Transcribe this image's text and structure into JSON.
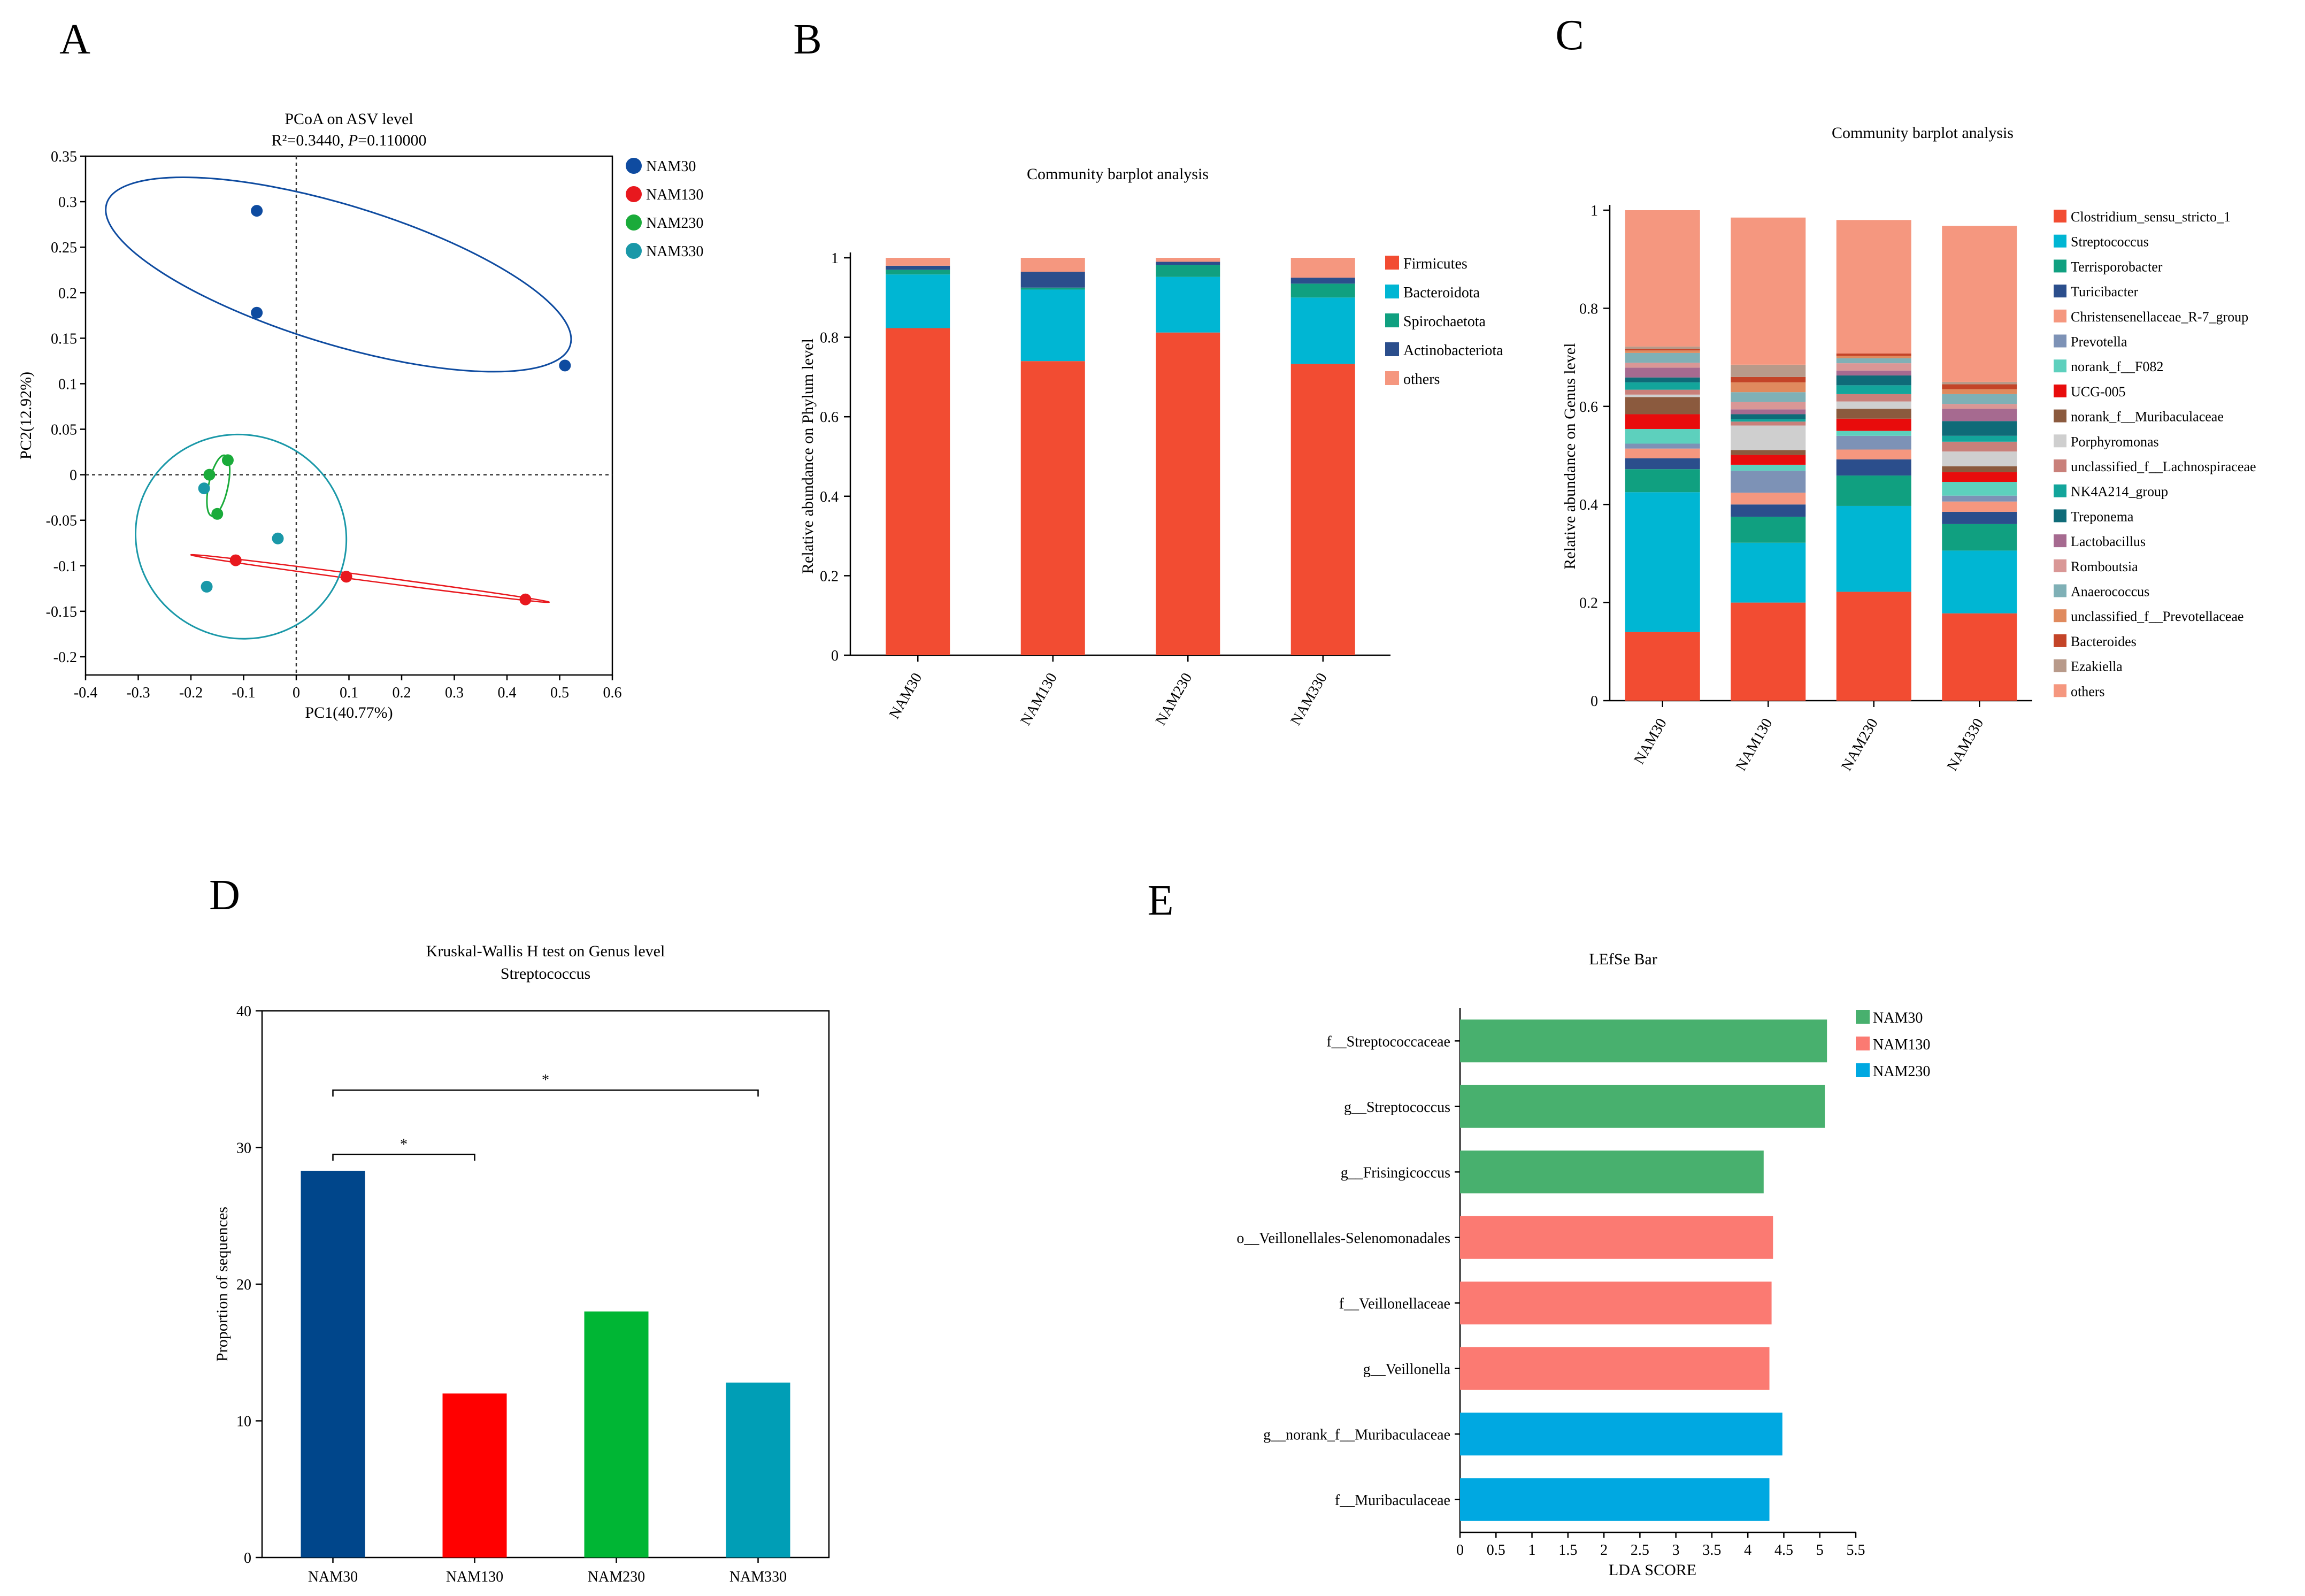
{
  "panel_letters": [
    "A",
    "B",
    "C",
    "D",
    "E"
  ],
  "chart_data": [
    {
      "id": "A",
      "type": "scatter",
      "title": "PCoA on ASV level",
      "subtitle_prefix": "R²=0.3440, ",
      "subtitle_p_label": "P",
      "subtitle_p_value": "=0.110000",
      "xlabel": "PC1(40.77%)",
      "ylabel": "PC2(12.92%)",
      "xlim": [
        -0.4,
        0.6
      ],
      "ylim": [
        -0.22,
        0.35
      ],
      "xticks": [
        -0.4,
        -0.3,
        -0.2,
        -0.1,
        0,
        0.1,
        0.2,
        0.3,
        0.4,
        0.5,
        0.6
      ],
      "xtick_labels": [
        "-0.4",
        "-0.3",
        "-0.2",
        "-0.1",
        "0",
        "0.1",
        "0.2",
        "0.3",
        "0.4",
        "0.5",
        "0.6"
      ],
      "yticks": [
        -0.2,
        -0.15,
        -0.1,
        -0.05,
        0,
        0.05,
        0.1,
        0.15,
        0.2,
        0.25,
        0.3,
        0.35
      ],
      "ytick_labels": [
        "-0.2",
        "-0.15",
        "-0.1",
        "-0.05",
        "0",
        "0.05",
        "0.1",
        "0.15",
        "0.2",
        "0.25",
        "0.3",
        "0.35"
      ],
      "series": [
        {
          "name": "NAM30",
          "color": "#0e4ba0",
          "points": [
            [
              -0.075,
              0.29
            ],
            [
              -0.075,
              0.178
            ],
            [
              0.51,
              0.12
            ]
          ]
        },
        {
          "name": "NAM130",
          "color": "#e8181e",
          "points": [
            [
              -0.115,
              -0.094
            ],
            [
              0.095,
              -0.112
            ],
            [
              0.435,
              -0.137
            ]
          ]
        },
        {
          "name": "NAM230",
          "color": "#1aab3a",
          "points": [
            [
              -0.165,
              0.0
            ],
            [
              -0.13,
              0.016
            ],
            [
              -0.15,
              -0.043
            ]
          ]
        },
        {
          "name": "NAM330",
          "color": "#1a98a8",
          "points": [
            [
              -0.175,
              -0.015
            ],
            [
              -0.035,
              -0.07
            ],
            [
              -0.17,
              -0.123
            ]
          ]
        }
      ],
      "legend_position": "right"
    },
    {
      "id": "B",
      "type": "bar",
      "stacked": true,
      "title": "Community barplot analysis",
      "ylabel": "Relative abundance on Phylum level",
      "ylim": [
        0,
        1
      ],
      "yticks": [
        0,
        0.2,
        0.4,
        0.6,
        0.8,
        1
      ],
      "ytick_labels": [
        "0",
        "0.2",
        "0.4",
        "0.6",
        "0.8",
        "1"
      ],
      "categories": [
        "NAM30",
        "NAM130",
        "NAM230",
        "NAM330"
      ],
      "series": [
        {
          "name": "Firmicutes",
          "color": "#f24c32",
          "values": [
            0.823,
            0.74,
            0.812,
            0.733
          ]
        },
        {
          "name": "Bacteroidota",
          "color": "#00b6d3",
          "values": [
            0.135,
            0.18,
            0.14,
            0.167
          ]
        },
        {
          "name": "Spirochaetota",
          "color": "#10a080",
          "values": [
            0.012,
            0.005,
            0.03,
            0.035
          ]
        },
        {
          "name": "Actinobacteriota",
          "color": "#2b4e8c",
          "values": [
            0.01,
            0.04,
            0.008,
            0.015
          ]
        },
        {
          "name": "others",
          "color": "#f5977f",
          "values": [
            0.02,
            0.035,
            0.01,
            0.05
          ]
        }
      ],
      "legend_position": "right"
    },
    {
      "id": "C",
      "type": "bar",
      "stacked": true,
      "title": "Community barplot analysis",
      "ylabel": "Relative abundance on Genus level",
      "ylim": [
        0,
        1
      ],
      "yticks": [
        0,
        0.2,
        0.4,
        0.6,
        0.8,
        1
      ],
      "ytick_labels": [
        "0",
        "0.2",
        "0.4",
        "0.6",
        "0.8",
        "1"
      ],
      "categories": [
        "NAM30",
        "NAM130",
        "NAM230",
        "NAM330"
      ],
      "series": [
        {
          "name": "Clostridium_sensu_stricto_1",
          "color": "#f24c32",
          "values": [
            0.14,
            0.2,
            0.222,
            0.178
          ]
        },
        {
          "name": "Streptococcus",
          "color": "#00b6d3",
          "values": [
            0.285,
            0.122,
            0.175,
            0.128
          ]
        },
        {
          "name": "Terrisporobacter",
          "color": "#10a080",
          "values": [
            0.047,
            0.053,
            0.062,
            0.054
          ]
        },
        {
          "name": "Turicibacter",
          "color": "#2b4e8c",
          "values": [
            0.022,
            0.025,
            0.033,
            0.025
          ]
        },
        {
          "name": "Christensenellaceae_R-7_group",
          "color": "#f5977f",
          "values": [
            0.02,
            0.024,
            0.02,
            0.021
          ]
        },
        {
          "name": "Prevotella",
          "color": "#7d92b6",
          "values": [
            0.01,
            0.045,
            0.028,
            0.012
          ]
        },
        {
          "name": "norank_f__F082",
          "color": "#5dd0bd",
          "values": [
            0.03,
            0.012,
            0.01,
            0.028
          ]
        },
        {
          "name": "UCG-005",
          "color": "#e80c0c",
          "values": [
            0.03,
            0.02,
            0.025,
            0.02
          ]
        },
        {
          "name": "norank_f__Muribaculaceae",
          "color": "#8b5a3e",
          "values": [
            0.035,
            0.01,
            0.02,
            0.012
          ]
        },
        {
          "name": "Porphyromonas",
          "color": "#cfcfcf",
          "values": [
            0.005,
            0.05,
            0.015,
            0.03
          ]
        },
        {
          "name": "unclassified_f__Lachnospiraceae",
          "color": "#c9807a",
          "values": [
            0.01,
            0.008,
            0.015,
            0.02
          ]
        },
        {
          "name": "NK4A214_group",
          "color": "#13a59b",
          "values": [
            0.015,
            0.005,
            0.018,
            0.012
          ]
        },
        {
          "name": "Treponema",
          "color": "#0f6b78",
          "values": [
            0.01,
            0.01,
            0.02,
            0.03
          ]
        },
        {
          "name": "Lactobacillus",
          "color": "#a66a90",
          "values": [
            0.02,
            0.01,
            0.01,
            0.025
          ]
        },
        {
          "name": "Romboutsia",
          "color": "#d99796",
          "values": [
            0.01,
            0.015,
            0.015,
            0.01
          ]
        },
        {
          "name": "Anaerococcus",
          "color": "#7fb0b6",
          "values": [
            0.02,
            0.02,
            0.01,
            0.02
          ]
        },
        {
          "name": "unclassified_f__Prevotellaceae",
          "color": "#e08a5e",
          "values": [
            0.005,
            0.02,
            0.005,
            0.01
          ]
        },
        {
          "name": "Bacteroides",
          "color": "#c44428",
          "values": [
            0.003,
            0.011,
            0.005,
            0.01
          ]
        },
        {
          "name": "Ezakiella",
          "color": "#b89a8a",
          "values": [
            0.005,
            0.025,
            0.0,
            0.005
          ]
        },
        {
          "name": "others",
          "color": "#f5977f",
          "values": [
            0.278,
            0.3,
            0.272,
            0.318
          ]
        }
      ],
      "legend_position": "right"
    },
    {
      "id": "D",
      "type": "bar",
      "title": "Kruskal-Wallis H test on Genus level",
      "subtitle": "Streptococcus",
      "ylabel": "Proportion of sequences",
      "ylim": [
        0,
        40
      ],
      "yticks": [
        0,
        10,
        20,
        30,
        40
      ],
      "ytick_labels": [
        "0",
        "10",
        "20",
        "30",
        "40"
      ],
      "categories": [
        "NAM30",
        "NAM130",
        "NAM230",
        "NAM330"
      ],
      "values": [
        28.3,
        12.0,
        18.0,
        12.8
      ],
      "colors": [
        "#00468b",
        "#ff0000",
        "#00b634",
        "#009eb6"
      ],
      "significance": [
        {
          "from": 0,
          "to": 1,
          "level": 29.5,
          "label": "*"
        },
        {
          "from": 0,
          "to": 3,
          "level": 34.2,
          "label": "*"
        }
      ]
    },
    {
      "id": "E",
      "type": "bar",
      "orientation": "horizontal",
      "title": "LEfSe Bar",
      "xlabel": "LDA SCORE",
      "xlim": [
        0,
        5.5
      ],
      "xticks": [
        0,
        0.5,
        1,
        1.5,
        2,
        2.5,
        3,
        3.5,
        4,
        4.5,
        5,
        5.5
      ],
      "xtick_labels": [
        "0",
        "0.5",
        "1",
        "1.5",
        "2",
        "2.5",
        "3",
        "3.5",
        "4",
        "4.5",
        "5",
        "5.5"
      ],
      "categories": [
        "f__Streptococcaceae",
        "g__Streptococcus",
        "g__Frisingicoccus",
        "o__Veillonellales-Selenomonadales",
        "f__Veillonellaceae",
        "g__Veillonella",
        "g__norank_f__Muribaculaceae",
        "f__Muribaculaceae"
      ],
      "values": [
        5.1,
        5.07,
        4.22,
        4.35,
        4.33,
        4.3,
        4.48,
        4.3
      ],
      "groups": [
        "NAM30",
        "NAM30",
        "NAM30",
        "NAM130",
        "NAM130",
        "NAM130",
        "NAM230",
        "NAM230"
      ],
      "legend": [
        {
          "name": "NAM30",
          "color": "#48b06e"
        },
        {
          "name": "NAM130",
          "color": "#fb7a72"
        },
        {
          "name": "NAM230",
          "color": "#00a8e1"
        }
      ],
      "legend_position": "top-right"
    }
  ]
}
